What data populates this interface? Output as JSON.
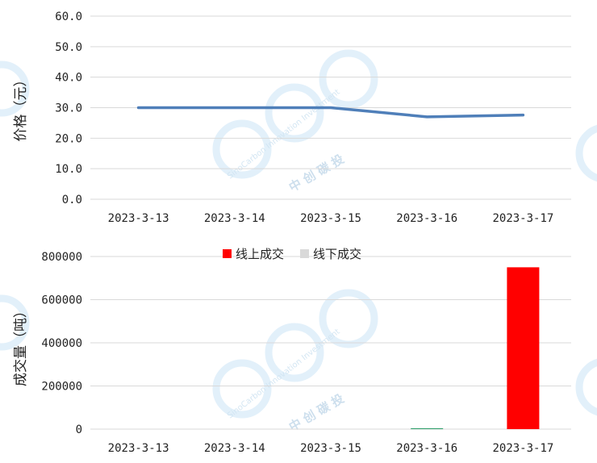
{
  "chart_data": [
    {
      "type": "line",
      "ylabel": "价格（元）",
      "categories": [
        "2023-3-13",
        "2023-3-14",
        "2023-3-15",
        "2023-3-16",
        "2023-3-17"
      ],
      "y_ticks": [
        "0.0",
        "10.0",
        "20.0",
        "30.0",
        "40.0",
        "50.0",
        "60.0"
      ],
      "ylim": [
        0,
        60
      ],
      "grid": true,
      "series": [
        {
          "values": [
            30.0,
            30.0,
            30.0,
            27.0,
            27.6
          ],
          "color": "#4f7fb9"
        }
      ]
    },
    {
      "type": "bar",
      "ylabel": "成交量（吨）",
      "categories": [
        "2023-3-13",
        "2023-3-14",
        "2023-3-15",
        "2023-3-16",
        "2023-3-17"
      ],
      "y_ticks": [
        "0",
        "200000",
        "400000",
        "600000",
        "800000"
      ],
      "ylim": [
        0,
        800000
      ],
      "grid": true,
      "legend": "top-center",
      "series": [
        {
          "name": "线上成交",
          "values": [
            0,
            0,
            0,
            4000,
            750000
          ],
          "color": "#ff0000"
        },
        {
          "name": "线下成交",
          "values": [
            0,
            0,
            0,
            0,
            0
          ],
          "color": "#d9d9d9"
        }
      ]
    }
  ],
  "watermark": {
    "text": "SinoCarbon Innovation Investment",
    "cn": "中 创 碳 投",
    "color": "#d6eaf8"
  }
}
